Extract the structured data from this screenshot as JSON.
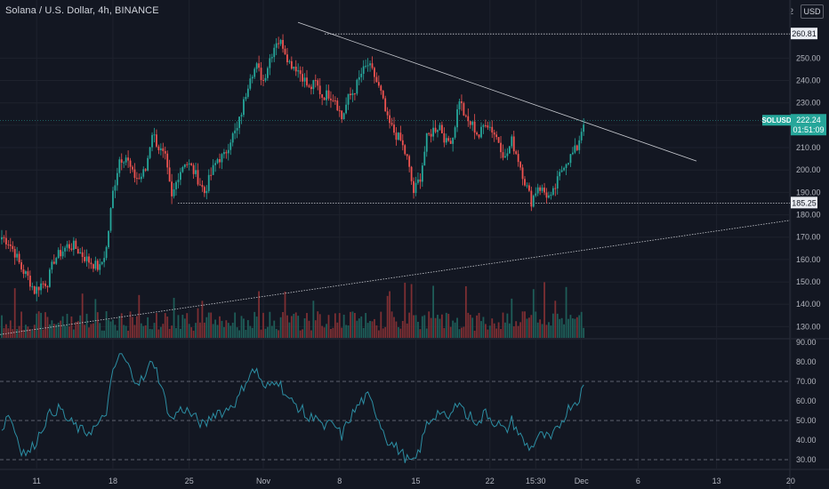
{
  "header": {
    "title": "Solana / U.S. Dollar, 4h, BINANCE",
    "currency": "USD",
    "corner_digit": "2"
  },
  "colors": {
    "background": "#131722",
    "up": "#26a69a",
    "down": "#ef5350",
    "rsi_line": "#2c8ea3",
    "grid": "#1e222d",
    "axis_text": "#b2b5be",
    "trendline": "#c9cbd1",
    "badge": "#26a69a"
  },
  "chart_data": {
    "type": "candlestick",
    "title": "Solana / U.S. Dollar, 4h, BINANCE",
    "price_axis": {
      "ticks": [
        "250.00",
        "240.00",
        "230.00",
        "220.00",
        "210.00",
        "200.00",
        "190.00",
        "180.00",
        "170.00",
        "160.00",
        "150.00",
        "140.00",
        "130.00"
      ],
      "range": [
        125,
        272
      ]
    },
    "rsi_axis": {
      "ticks": [
        "90.00",
        "80.00",
        "70.00",
        "60.00",
        "50.00",
        "40.00",
        "30.00"
      ],
      "range": [
        25,
        90
      ],
      "levels": [
        70,
        50,
        30
      ]
    },
    "x_ticks": [
      "11",
      "18",
      "25",
      "Nov",
      "8",
      "15",
      "22",
      "15:30",
      "Dec",
      "6",
      "13",
      "20"
    ],
    "series_close_anchors": [
      [
        0,
        170
      ],
      [
        3,
        168
      ],
      [
        6,
        163
      ],
      [
        9,
        156
      ],
      [
        12,
        152
      ],
      [
        15,
        146
      ],
      [
        18,
        149
      ],
      [
        21,
        150
      ],
      [
        24,
        160
      ],
      [
        27,
        163
      ],
      [
        30,
        166
      ],
      [
        33,
        166
      ],
      [
        36,
        163
      ],
      [
        39,
        160
      ],
      [
        42,
        158
      ],
      [
        45,
        156
      ],
      [
        48,
        165
      ],
      [
        51,
        190
      ],
      [
        54,
        205
      ],
      [
        57,
        206
      ],
      [
        60,
        198
      ],
      [
        63,
        196
      ],
      [
        66,
        200
      ],
      [
        69,
        217
      ],
      [
        72,
        210
      ],
      [
        75,
        205
      ],
      [
        78,
        187
      ],
      [
        81,
        198
      ],
      [
        84,
        204
      ],
      [
        87,
        201
      ],
      [
        90,
        196
      ],
      [
        93,
        190
      ],
      [
        96,
        198
      ],
      [
        99,
        205
      ],
      [
        102,
        206
      ],
      [
        105,
        214
      ],
      [
        108,
        218
      ],
      [
        111,
        230
      ],
      [
        114,
        243
      ],
      [
        117,
        246
      ],
      [
        120,
        240
      ],
      [
        123,
        250
      ],
      [
        126,
        258
      ],
      [
        129,
        256
      ],
      [
        132,
        248
      ],
      [
        135,
        246
      ],
      [
        138,
        242
      ],
      [
        141,
        236
      ],
      [
        144,
        239
      ],
      [
        147,
        233
      ],
      [
        150,
        234
      ],
      [
        153,
        232
      ],
      [
        156,
        223
      ],
      [
        159,
        232
      ],
      [
        162,
        236
      ],
      [
        165,
        243
      ],
      [
        168,
        247
      ],
      [
        171,
        242
      ],
      [
        174,
        234
      ],
      [
        177,
        222
      ],
      [
        180,
        217
      ],
      [
        183,
        213
      ],
      [
        186,
        205
      ],
      [
        189,
        190
      ],
      [
        192,
        197
      ],
      [
        195,
        214
      ],
      [
        198,
        218
      ],
      [
        201,
        220
      ],
      [
        204,
        212
      ],
      [
        207,
        215
      ],
      [
        210,
        232
      ],
      [
        213,
        222
      ],
      [
        216,
        220
      ],
      [
        219,
        215
      ],
      [
        222,
        222
      ],
      [
        225,
        218
      ],
      [
        228,
        213
      ],
      [
        231,
        205
      ],
      [
        234,
        213
      ],
      [
        237,
        205
      ],
      [
        240,
        195
      ],
      [
        243,
        186
      ],
      [
        246,
        193
      ],
      [
        249,
        190
      ],
      [
        252,
        187
      ],
      [
        255,
        195
      ],
      [
        258,
        203
      ],
      [
        261,
        206
      ],
      [
        264,
        210
      ],
      [
        267,
        222
      ]
    ],
    "levels": [
      {
        "value": 260.81,
        "label": "260.81"
      },
      {
        "value": 185.25,
        "label": "185.25"
      }
    ],
    "last_price": {
      "symbol": "SOLUSD",
      "price": "222.24",
      "countdown": "01:51:09"
    },
    "rsi_anchors": [
      [
        0,
        45
      ],
      [
        3,
        54
      ],
      [
        6,
        45
      ],
      [
        9,
        35
      ],
      [
        12,
        33
      ],
      [
        15,
        38
      ],
      [
        18,
        45
      ],
      [
        21,
        52
      ],
      [
        24,
        55
      ],
      [
        27,
        56
      ],
      [
        30,
        50
      ],
      [
        33,
        48
      ],
      [
        36,
        45
      ],
      [
        39,
        44
      ],
      [
        42,
        46
      ],
      [
        45,
        48
      ],
      [
        48,
        55
      ],
      [
        51,
        74
      ],
      [
        54,
        84
      ],
      [
        57,
        80
      ],
      [
        60,
        73
      ],
      [
        63,
        70
      ],
      [
        66,
        72
      ],
      [
        69,
        82
      ],
      [
        72,
        72
      ],
      [
        75,
        60
      ],
      [
        78,
        50
      ],
      [
        81,
        55
      ],
      [
        84,
        56
      ],
      [
        87,
        53
      ],
      [
        90,
        50
      ],
      [
        93,
        47
      ],
      [
        96,
        52
      ],
      [
        99,
        55
      ],
      [
        102,
        54
      ],
      [
        105,
        58
      ],
      [
        108,
        60
      ],
      [
        111,
        68
      ],
      [
        114,
        74
      ],
      [
        117,
        76
      ],
      [
        120,
        66
      ],
      [
        123,
        68
      ],
      [
        126,
        72
      ],
      [
        129,
        66
      ],
      [
        132,
        60
      ],
      [
        135,
        58
      ],
      [
        138,
        55
      ],
      [
        141,
        50
      ],
      [
        144,
        54
      ],
      [
        147,
        46
      ],
      [
        150,
        48
      ],
      [
        153,
        47
      ],
      [
        156,
        42
      ],
      [
        159,
        50
      ],
      [
        162,
        55
      ],
      [
        165,
        60
      ],
      [
        168,
        62
      ],
      [
        171,
        56
      ],
      [
        174,
        48
      ],
      [
        177,
        40
      ],
      [
        180,
        37
      ],
      [
        183,
        34
      ],
      [
        186,
        30
      ],
      [
        189,
        28
      ],
      [
        192,
        36
      ],
      [
        195,
        48
      ],
      [
        198,
        52
      ],
      [
        201,
        55
      ],
      [
        204,
        50
      ],
      [
        207,
        54
      ],
      [
        210,
        62
      ],
      [
        213,
        52
      ],
      [
        216,
        52
      ],
      [
        219,
        48
      ],
      [
        222,
        55
      ],
      [
        225,
        50
      ],
      [
        228,
        48
      ],
      [
        231,
        44
      ],
      [
        234,
        50
      ],
      [
        237,
        44
      ],
      [
        240,
        38
      ],
      [
        243,
        36
      ],
      [
        246,
        42
      ],
      [
        249,
        42
      ],
      [
        252,
        40
      ],
      [
        255,
        46
      ],
      [
        258,
        52
      ],
      [
        261,
        58
      ],
      [
        264,
        60
      ],
      [
        267,
        67
      ]
    ]
  }
}
